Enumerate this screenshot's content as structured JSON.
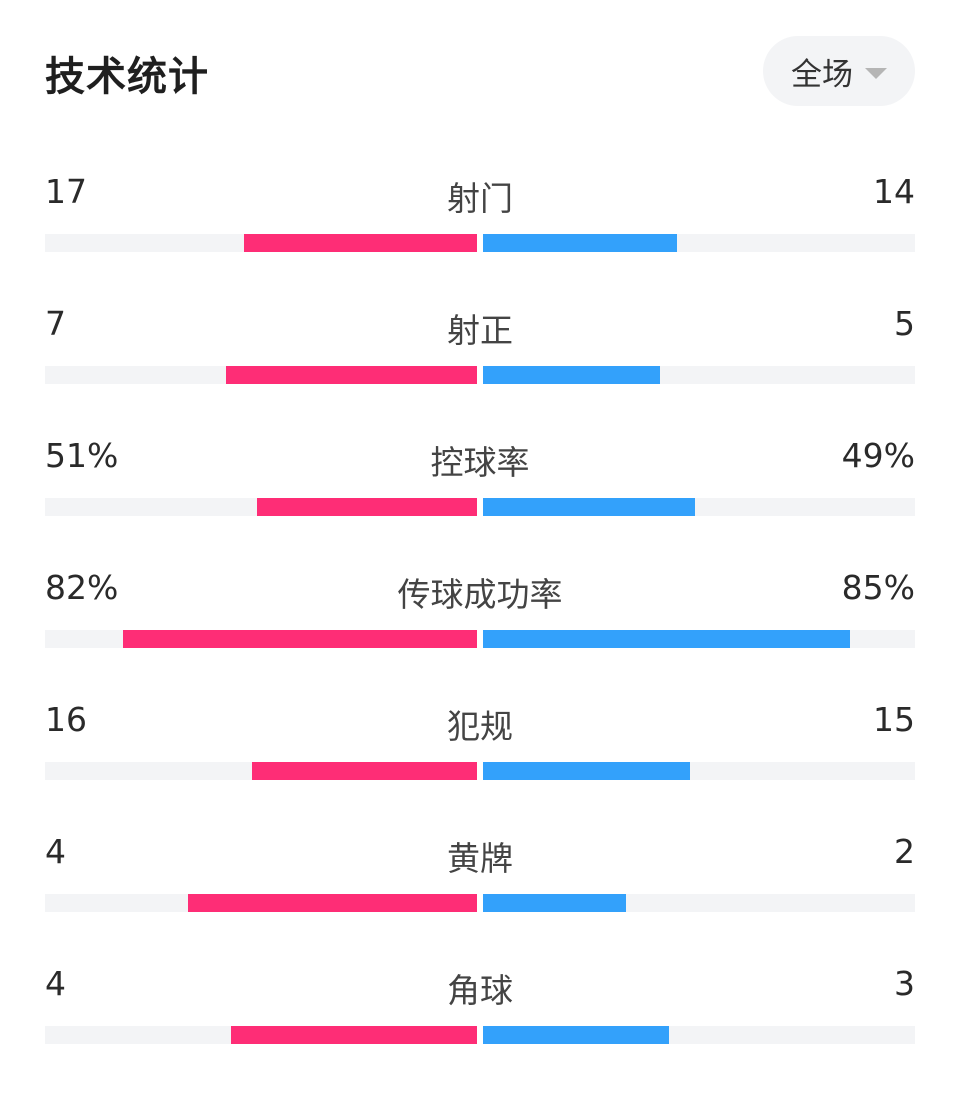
{
  "header": {
    "title": "技术统计",
    "period": "全场",
    "period_icon": "caret-down-icon"
  },
  "colors": {
    "home": "#fe2d76",
    "away": "#33a1fb",
    "track": "#f3f4f6"
  },
  "stats": [
    {
      "name": "射门",
      "home": "17",
      "away": "14",
      "home_fill": 0.54,
      "away_fill": 0.45
    },
    {
      "name": "射正",
      "home": "7",
      "away": "5",
      "home_fill": 0.58,
      "away_fill": 0.41
    },
    {
      "name": "控球率",
      "home": "51%",
      "away": "49%",
      "home_fill": 0.51,
      "away_fill": 0.49
    },
    {
      "name": "传球成功率",
      "home": "82%",
      "away": "85%",
      "home_fill": 0.82,
      "away_fill": 0.85
    },
    {
      "name": "犯规",
      "home": "16",
      "away": "15",
      "home_fill": 0.52,
      "away_fill": 0.48
    },
    {
      "name": "黄牌",
      "home": "4",
      "away": "2",
      "home_fill": 0.67,
      "away_fill": 0.33
    },
    {
      "name": "角球",
      "home": "4",
      "away": "3",
      "home_fill": 0.57,
      "away_fill": 0.43
    }
  ]
}
